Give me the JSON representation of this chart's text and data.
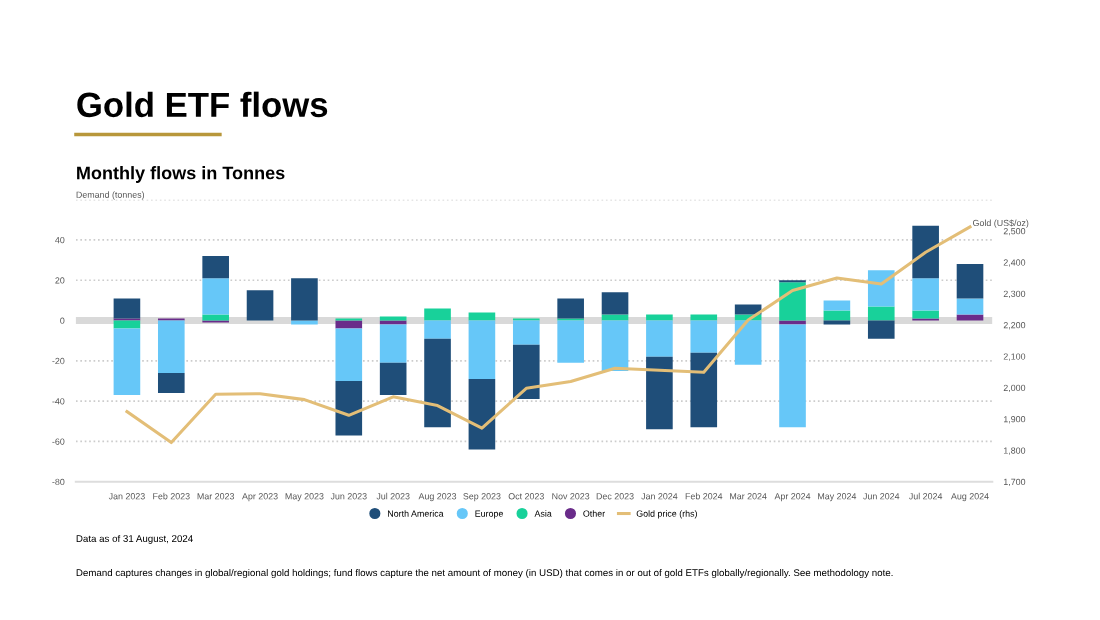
{
  "chart_data": {
    "type": "bar",
    "title": "Gold ETF flows",
    "subtitle": "Monthly flows in Tonnes",
    "ylabel": "Demand (tonnes)",
    "y2label": "Gold (US$/oz)",
    "categories": [
      "Jan 2023",
      "Feb 2023",
      "Mar 2023",
      "Apr 2023",
      "May 2023",
      "Jun 2023",
      "Jul 2023",
      "Aug 2023",
      "Sep 2023",
      "Oct 2023",
      "Nov 2023",
      "Dec 2023",
      "Jan 2024",
      "Feb 2024",
      "Mar 2024",
      "Apr 2024",
      "May 2024",
      "Jun 2024",
      "Jul 2024",
      "Aug 2024"
    ],
    "stacked": true,
    "series": [
      {
        "name": "Other",
        "color": "#6a2c8a",
        "values": [
          1,
          1,
          -1,
          0,
          0,
          -4,
          -2,
          0,
          0,
          0,
          0,
          0,
          0,
          0,
          0,
          -2,
          0,
          0,
          1,
          3
        ]
      },
      {
        "name": "Asia",
        "color": "#18d19a",
        "values": [
          -4,
          0,
          3,
          0,
          0,
          1,
          2,
          6,
          4,
          1,
          1,
          3,
          3,
          3,
          3,
          19,
          5,
          7,
          4,
          0
        ]
      },
      {
        "name": "Europe",
        "color": "#66c7f8",
        "values": [
          -33,
          -26,
          18,
          0,
          -2,
          -26,
          -19,
          -9,
          -29,
          -12,
          -21,
          -25,
          -18,
          -16,
          -22,
          -51,
          5,
          18,
          16,
          8
        ]
      },
      {
        "name": "North America",
        "color": "#1f4e79",
        "values": [
          10,
          -10,
          11,
          15,
          21,
          -27,
          -16,
          -44,
          -35,
          -27,
          10,
          11,
          -36,
          -37,
          5,
          1,
          -2,
          -9,
          26,
          17
        ]
      },
      {
        "name": "Gold price (rhs)",
        "type": "line",
        "axis": "y2",
        "color": "#e3be77",
        "values": [
          1924,
          1825,
          1979,
          1981,
          1962,
          1912,
          1971,
          1943,
          1871,
          1998,
          2020,
          2062,
          2056,
          2049,
          2216,
          2310,
          2350,
          2331,
          2432,
          2513
        ]
      }
    ],
    "ylim": [
      -80,
      60
    ],
    "yticks": [
      -80,
      -60,
      -40,
      -20,
      0,
      20,
      40,
      {
        "value": 60,
        "label": null
      }
    ],
    "y2lim": [
      1700,
      2600
    ],
    "y2ticks": [
      {
        "value": 1700,
        "label": "1,700"
      },
      {
        "value": 1800,
        "label": "1,800"
      },
      {
        "value": 1900,
        "label": "1,900"
      },
      {
        "value": 2000,
        "label": "2,000"
      },
      {
        "value": 2100,
        "label": "2,100"
      },
      {
        "value": 2200,
        "label": "2,200"
      },
      {
        "value": 2300,
        "label": "2,300"
      },
      {
        "value": 2400,
        "label": "2,400"
      },
      {
        "value": 2500,
        "label": "2,500"
      }
    ],
    "grid": "y",
    "legend": "bottom",
    "annotations": [
      "Data as of 31 August, 2024",
      "Demand captures changes in global/regional gold holdings; fund flows capture the net amount of money (in USD) that comes in or out of gold ETFs globally/regionally. See methodology note."
    ]
  }
}
